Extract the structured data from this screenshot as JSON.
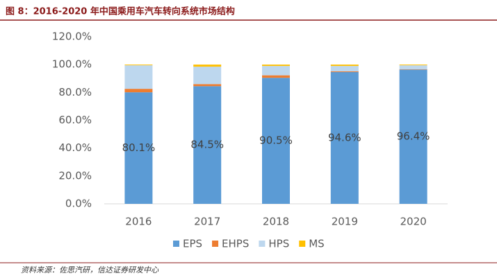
{
  "chart_data": {
    "type": "bar",
    "stacked": true,
    "title": "图 8：2016-2020 年中国乘用车汽车转向系统市场结构",
    "source": "资料来源：佐思汽研，信达证券研发中心",
    "categories": [
      "2016",
      "2017",
      "2018",
      "2019",
      "2020"
    ],
    "series": [
      {
        "name": "EPS",
        "color": "#5b9bd5",
        "values": [
          80.1,
          84.5,
          90.5,
          94.6,
          96.4
        ],
        "value_labels": [
          "80.1%",
          "84.5%",
          "90.5%",
          "94.6%",
          "96.4%"
        ]
      },
      {
        "name": "EHPS",
        "color": "#ed7d31",
        "values": [
          2.5,
          1.5,
          1.8,
          0.5,
          0.3
        ]
      },
      {
        "name": "HPS",
        "color": "#bdd7ee",
        "values": [
          16.9,
          12.5,
          6.7,
          3.9,
          2.8
        ]
      },
      {
        "name": "MS",
        "color": "#ffc000",
        "values": [
          0.5,
          1.5,
          1.0,
          1.0,
          0.5
        ]
      }
    ],
    "ylim": [
      0,
      120
    ],
    "yticks": [
      {
        "value": 0,
        "label": "0.0%"
      },
      {
        "value": 20,
        "label": "20.0%"
      },
      {
        "value": 40,
        "label": "40.0%"
      },
      {
        "value": 60,
        "label": "60.0%"
      },
      {
        "value": 80,
        "label": "80.0%"
      },
      {
        "value": 100,
        "label": "100.0%"
      },
      {
        "value": 120,
        "label": "120.0%"
      }
    ],
    "grid": false,
    "legend": "bottom"
  }
}
